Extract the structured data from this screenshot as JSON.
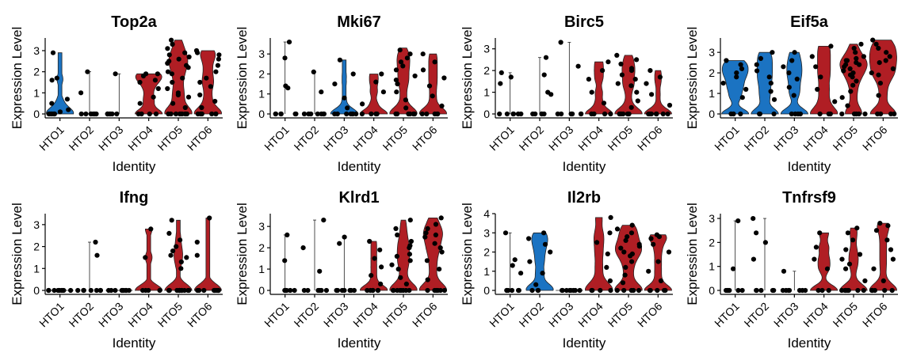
{
  "colors": {
    "high": "#B01E24",
    "low": "#1B73C2",
    "point": "#000000"
  },
  "chart_data": [
    {
      "type": "violin",
      "title": "Top2a",
      "xlabel": "Identity",
      "ylabel": "Expression Level",
      "ylim": [
        0,
        3.6
      ],
      "yticks": [
        0,
        1,
        2,
        3
      ],
      "categories": [
        "HTO1",
        "HTO2",
        "HTO3",
        "HTO4",
        "HTO5",
        "HTO6"
      ],
      "groups": [
        {
          "color": "blue",
          "max": 2.9,
          "values": [
            0,
            0,
            0,
            0,
            0,
            0,
            0,
            0.1,
            0.2,
            0.5,
            0.7,
            1.6,
            1.7,
            2.9
          ]
        },
        {
          "color": "none",
          "max": 2.0,
          "values": [
            0,
            0,
            0,
            0,
            0,
            0,
            0,
            1.0,
            2.0
          ]
        },
        {
          "color": "none",
          "max": 1.9,
          "values": [
            0,
            0,
            0,
            0,
            0,
            0,
            0,
            1.9
          ]
        },
        {
          "color": "red",
          "max": 1.9,
          "values": [
            0,
            0,
            0,
            0,
            0.5,
            0.8,
            1.2,
            1.5,
            1.6,
            1.8,
            1.9,
            1.9
          ]
        },
        {
          "color": "red",
          "max": 3.5,
          "values": [
            0,
            0,
            0,
            0,
            0,
            0,
            0,
            0,
            0,
            0.3,
            0.5,
            0.8,
            1.0,
            1.2,
            1.5,
            1.7,
            2.0,
            2.2,
            2.4,
            2.5,
            2.6,
            2.7,
            2.8,
            2.9,
            3.1,
            3.3,
            3.5,
            1.9,
            2.3,
            0.9
          ]
        },
        {
          "color": "red",
          "max": 3.0,
          "values": [
            0,
            0,
            0,
            0,
            0,
            0,
            0.3,
            0.6,
            0.9,
            1.3,
            1.7,
            2.0,
            2.3,
            2.6,
            2.9,
            3.0,
            1.5,
            2.8
          ]
        }
      ]
    },
    {
      "type": "violin",
      "title": "Mki67",
      "xlabel": "Identity",
      "ylabel": "Expression Level",
      "ylim": [
        0,
        3.8
      ],
      "yticks": [
        0,
        1,
        2,
        3
      ],
      "categories": [
        "HTO1",
        "HTO2",
        "HTO3",
        "HTO4",
        "HTO5",
        "HTO6"
      ],
      "groups": [
        {
          "color": "none",
          "max": 3.6,
          "values": [
            0,
            0,
            0,
            0,
            0,
            0,
            1.3,
            1.4,
            2.8,
            3.6
          ]
        },
        {
          "color": "none",
          "max": 2.1,
          "values": [
            0,
            0,
            0,
            0,
            0,
            0,
            0,
            1.1,
            2.1
          ]
        },
        {
          "color": "blue",
          "max": 2.7,
          "values": [
            0,
            0,
            0,
            0,
            0,
            0,
            0,
            0.3,
            0.8,
            1.5,
            2.0,
            2.7
          ]
        },
        {
          "color": "red",
          "max": 2.0,
          "values": [
            0,
            0,
            0,
            0,
            0.5,
            1.1,
            1.6,
            2.0
          ]
        },
        {
          "color": "red",
          "max": 3.3,
          "values": [
            0,
            0,
            0,
            0,
            0,
            0,
            0,
            0.3,
            0.7,
            1.1,
            1.5,
            1.9,
            2.2,
            2.6,
            2.8,
            3.0,
            3.2,
            2.4,
            1.7
          ]
        },
        {
          "color": "red",
          "max": 3.0,
          "values": [
            0,
            0,
            0,
            0,
            0,
            0.4,
            0.9,
            1.4,
            1.8,
            2.2,
            2.6,
            3.0
          ]
        }
      ]
    },
    {
      "type": "violin",
      "title": "Birc5",
      "xlabel": "Identity",
      "ylabel": "Expression Level",
      "ylim": [
        0,
        3.5
      ],
      "yticks": [
        0,
        1,
        2,
        3
      ],
      "categories": [
        "HTO1",
        "HTO2",
        "HTO3",
        "HTO4",
        "HTO5",
        "HTO6"
      ],
      "groups": [
        {
          "color": "none",
          "max": 1.9,
          "values": [
            0,
            0,
            0,
            0,
            0,
            0,
            1.4,
            1.7,
            1.9
          ]
        },
        {
          "color": "none",
          "max": 2.6,
          "values": [
            0,
            0,
            0,
            0,
            0,
            0.9,
            1.0,
            1.8,
            2.6
          ]
        },
        {
          "color": "none",
          "max": 3.3,
          "values": [
            0,
            0,
            0,
            0,
            0,
            0,
            0,
            2.2,
            3.3
          ]
        },
        {
          "color": "red",
          "max": 2.4,
          "values": [
            0,
            0,
            0,
            0,
            0.5,
            1.0,
            1.6,
            2.0,
            2.4
          ]
        },
        {
          "color": "red",
          "max": 2.7,
          "values": [
            0,
            0,
            0,
            0,
            0,
            0,
            0,
            0.3,
            0.6,
            1.0,
            1.3,
            1.6,
            1.8,
            2.0,
            2.3,
            2.5,
            2.7,
            1.4,
            2.1
          ]
        },
        {
          "color": "red",
          "max": 2.0,
          "values": [
            0,
            0,
            0,
            0,
            0,
            0,
            0,
            0.4,
            0.9,
            1.4,
            1.7,
            2.0
          ]
        }
      ]
    },
    {
      "type": "violin",
      "title": "Eif5a",
      "xlabel": "Identity",
      "ylabel": "Expression Level",
      "ylim": [
        0,
        3.7
      ],
      "yticks": [
        0,
        1,
        2,
        3
      ],
      "categories": [
        "HTO1",
        "HTO2",
        "HTO3",
        "HTO4",
        "HTO5",
        "HTO6"
      ],
      "groups": [
        {
          "color": "blue",
          "max": 2.6,
          "values": [
            0,
            0,
            0,
            0.8,
            1.2,
            1.5,
            1.8,
            2.0,
            2.2,
            2.4,
            2.6
          ]
        },
        {
          "color": "blue",
          "max": 3.0,
          "values": [
            0,
            0,
            0,
            0,
            0.7,
            1.1,
            1.5,
            1.8,
            2.1,
            2.4,
            2.7,
            3.0
          ]
        },
        {
          "color": "blue",
          "max": 3.0,
          "values": [
            0,
            0,
            0,
            0,
            0.9,
            1.3,
            1.7,
            2.0,
            2.3,
            2.6,
            3.0
          ]
        },
        {
          "color": "red",
          "max": 3.3,
          "values": [
            0,
            0,
            0,
            0.6,
            1.2,
            1.8,
            2.3,
            2.8,
            3.3
          ]
        },
        {
          "color": "red",
          "max": 3.4,
          "values": [
            0,
            0,
            0,
            0,
            0,
            0.4,
            0.8,
            1.1,
            1.4,
            1.6,
            1.8,
            2.0,
            2.1,
            2.2,
            2.3,
            2.4,
            2.5,
            2.6,
            2.7,
            2.8,
            3.0,
            3.2,
            3.4,
            1.9,
            2.4,
            2.6
          ]
        },
        {
          "color": "red",
          "max": 3.6,
          "values": [
            0,
            0,
            0,
            0,
            0.9,
            1.5,
            1.9,
            2.2,
            2.5,
            2.8,
            3.0,
            3.2,
            3.4,
            3.6,
            2.6,
            2.0
          ]
        }
      ]
    },
    {
      "type": "violin",
      "title": "Ifng",
      "xlabel": "Identity",
      "ylabel": "Expression Level",
      "ylim": [
        0,
        3.5
      ],
      "yticks": [
        0,
        1,
        2,
        3
      ],
      "categories": [
        "HTO1",
        "HTO2",
        "HTO3",
        "HTO4",
        "HTO5",
        "HTO6"
      ],
      "groups": [
        {
          "color": "none",
          "max": 0,
          "values": [
            0,
            0,
            0,
            0,
            0,
            0,
            0,
            0,
            0
          ]
        },
        {
          "color": "none",
          "max": 2.2,
          "values": [
            0,
            0,
            0,
            0,
            0,
            0,
            0,
            1.6,
            2.2
          ]
        },
        {
          "color": "none",
          "max": 0,
          "values": [
            0,
            0,
            0,
            0,
            0,
            0,
            0,
            0,
            0
          ]
        },
        {
          "color": "red",
          "max": 2.8,
          "values": [
            0,
            0,
            0,
            0,
            1.5,
            2.8
          ]
        },
        {
          "color": "red",
          "max": 3.2,
          "values": [
            0,
            0,
            0,
            0,
            0,
            0,
            0,
            0,
            0,
            0,
            0,
            0,
            1.0,
            1.3,
            1.6,
            1.8,
            2.0,
            2.3,
            2.6,
            3.2,
            1.5
          ]
        },
        {
          "color": "red",
          "max": 3.3,
          "values": [
            0,
            0,
            0,
            0,
            0,
            0,
            0,
            0,
            0,
            0,
            1.6,
            2.2,
            3.3
          ]
        }
      ]
    },
    {
      "type": "violin",
      "title": "Klrd1",
      "xlabel": "Identity",
      "ylabel": "Expression Level",
      "ylim": [
        0,
        3.6
      ],
      "yticks": [
        0,
        1,
        2,
        3
      ],
      "categories": [
        "HTO1",
        "HTO2",
        "HTO3",
        "HTO4",
        "HTO5",
        "HTO6"
      ],
      "groups": [
        {
          "color": "none",
          "max": 2.6,
          "values": [
            0,
            0,
            0,
            0,
            0,
            0,
            1.4,
            2.6
          ]
        },
        {
          "color": "none",
          "max": 3.3,
          "values": [
            0,
            0,
            0,
            0,
            0,
            0,
            0.9,
            2.0,
            3.3
          ]
        },
        {
          "color": "none",
          "max": 2.5,
          "values": [
            0,
            0,
            0,
            0,
            0,
            0,
            0,
            2.2,
            2.5
          ]
        },
        {
          "color": "red",
          "max": 2.3,
          "values": [
            0,
            0,
            0,
            0,
            0,
            0,
            0.3,
            0.7,
            1.1,
            1.5,
            1.9,
            2.3
          ]
        },
        {
          "color": "red",
          "max": 3.3,
          "values": [
            0,
            0,
            0,
            0,
            0,
            0,
            0,
            0,
            0.3,
            0.6,
            1.0,
            1.4,
            1.7,
            2.0,
            2.3,
            2.6,
            2.9,
            3.3,
            1.6,
            1.2,
            2.1
          ]
        },
        {
          "color": "red",
          "max": 3.4,
          "values": [
            0,
            0,
            0,
            0,
            0,
            0,
            0.5,
            1.0,
            1.4,
            1.8,
            2.2,
            2.5,
            2.7,
            2.9,
            3.1,
            3.4,
            2.6,
            2.0
          ]
        }
      ]
    },
    {
      "type": "violin",
      "title": "Il2rb",
      "xlabel": "Identity",
      "ylabel": "Expression Level",
      "ylim": [
        0,
        4.0
      ],
      "yticks": [
        0,
        1,
        2,
        3,
        4
      ],
      "categories": [
        "HTO1",
        "HTO2",
        "HTO3",
        "HTO4",
        "HTO5",
        "HTO6"
      ],
      "groups": [
        {
          "color": "none",
          "max": 3.0,
          "values": [
            0,
            0,
            0,
            0,
            0,
            0,
            0.9,
            1.3,
            1.6,
            3.0
          ]
        },
        {
          "color": "blue",
          "max": 3.0,
          "values": [
            0,
            0,
            0,
            0.3,
            0.9,
            1.5,
            2.0,
            2.4,
            2.7,
            3.0
          ]
        },
        {
          "color": "none",
          "max": 0,
          "values": [
            0,
            0,
            0,
            0,
            0,
            0,
            0,
            0
          ]
        },
        {
          "color": "red",
          "max": 3.8,
          "values": [
            0,
            0,
            0,
            0,
            0.5,
            1.2,
            1.9,
            2.5,
            3.0,
            3.8
          ]
        },
        {
          "color": "red",
          "max": 3.4,
          "values": [
            0,
            0,
            0,
            0,
            0,
            0.4,
            0.8,
            1.2,
            1.5,
            1.8,
            2.0,
            2.2,
            2.4,
            2.6,
            2.8,
            3.0,
            3.2,
            3.4,
            1.9,
            2.3
          ]
        },
        {
          "color": "red",
          "max": 2.9,
          "values": [
            0,
            0,
            0,
            0,
            0,
            0.5,
            1.0,
            1.5,
            2.0,
            2.4,
            2.7,
            2.9,
            2.8
          ]
        }
      ]
    },
    {
      "type": "violin",
      "title": "Tnfrsf9",
      "xlabel": "Identity",
      "ylabel": "Expression Level",
      "ylim": [
        0,
        3.2
      ],
      "yticks": [
        0,
        1,
        2,
        3
      ],
      "categories": [
        "HTO1",
        "HTO2",
        "HTO3",
        "HTO4",
        "HTO5",
        "HTO6"
      ],
      "groups": [
        {
          "color": "none",
          "max": 2.9,
          "values": [
            0,
            0,
            0,
            0,
            0,
            0,
            0.9,
            2.9
          ]
        },
        {
          "color": "none",
          "max": 3.0,
          "values": [
            0,
            0,
            0,
            0,
            0,
            1.3,
            2.0,
            2.4,
            3.0
          ]
        },
        {
          "color": "none",
          "max": 0.8,
          "values": [
            0,
            0,
            0,
            0,
            0,
            0,
            0,
            0.8
          ]
        },
        {
          "color": "red",
          "max": 2.4,
          "values": [
            0,
            0,
            0,
            0.9,
            1.3,
            1.8,
            2.4
          ]
        },
        {
          "color": "red",
          "max": 2.6,
          "values": [
            0,
            0,
            0,
            0,
            0,
            0,
            0,
            0,
            0.4,
            0.9,
            1.3,
            1.7,
            2.1,
            2.4,
            2.6,
            1.5,
            1.1
          ]
        },
        {
          "color": "red",
          "max": 2.8,
          "values": [
            0,
            0,
            0,
            0,
            0,
            0,
            0.4,
            0.9,
            1.3,
            1.7,
            2.1,
            2.5,
            2.8,
            2.7
          ]
        }
      ]
    }
  ]
}
